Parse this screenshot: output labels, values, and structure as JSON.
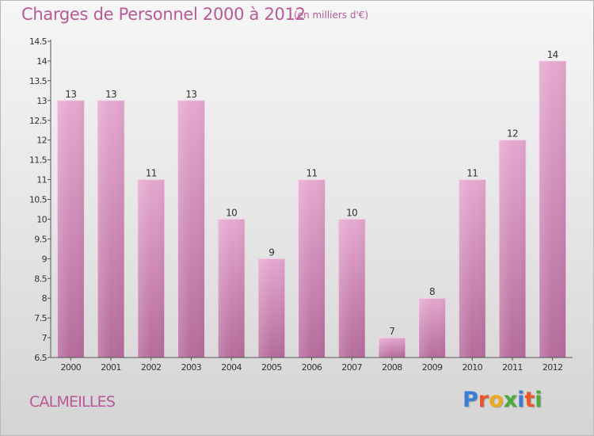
{
  "header": {
    "title": "Charges de Personnel 2000 à 2012",
    "subtitle": "(en milliers d'€)"
  },
  "footer": {
    "commune": "CALMEILLES",
    "logo_letters": [
      {
        "ch": "P",
        "color": "#3a7fd5"
      },
      {
        "ch": "r",
        "color": "#e8562a"
      },
      {
        "ch": "o",
        "color": "#f0a81c"
      },
      {
        "ch": "x",
        "color": "#4aaa3c"
      },
      {
        "ch": "i",
        "color": "#3a7fd5"
      },
      {
        "ch": "t",
        "color": "#e8562a"
      },
      {
        "ch": "i",
        "color": "#4aaa3c"
      }
    ]
  },
  "chart_data": {
    "type": "bar",
    "categories": [
      "2000",
      "2001",
      "2002",
      "2003",
      "2004",
      "2005",
      "2006",
      "2007",
      "2008",
      "2009",
      "2010",
      "2011",
      "2012"
    ],
    "values": [
      13,
      13,
      11,
      13,
      10,
      9,
      11,
      10,
      7,
      8,
      11,
      12,
      14
    ],
    "title": "Charges de Personnel 2000 à 2012",
    "subtitle": "(en milliers d'€)",
    "xlabel": "",
    "ylabel": "",
    "ylim": [
      6.5,
      14.5
    ],
    "yticks": [
      "6.5",
      "7",
      "7.5",
      "8",
      "8.5",
      "9",
      "9.5",
      "10",
      "10.5",
      "11",
      "11.5",
      "12",
      "12.5",
      "13",
      "13.5",
      "14",
      "14.5"
    ],
    "grid": false,
    "bar_color": "#d98cbb"
  }
}
